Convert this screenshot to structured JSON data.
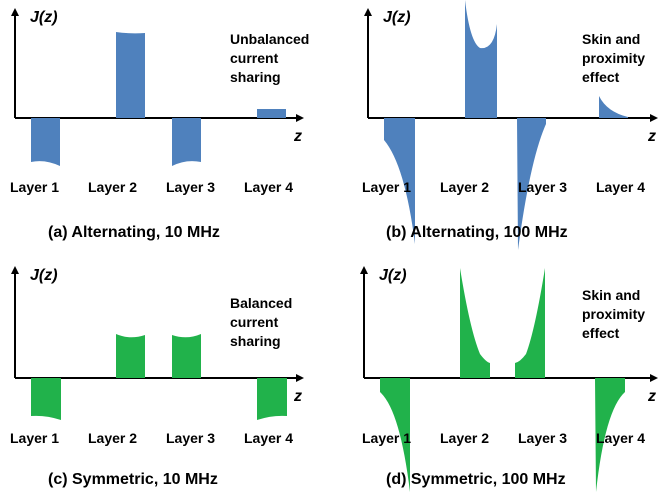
{
  "colors": {
    "blue": "#4f81bd",
    "green": "#21b24b",
    "axis": "#000000"
  },
  "axis_labels": {
    "y": "J(z)",
    "x": "z"
  },
  "panels": [
    {
      "id": "a",
      "caption": "(a) Alternating, 10 MHz",
      "note": [
        "Unbalanced",
        "current",
        "sharing"
      ],
      "layers": [
        "Layer 1",
        "Layer 2",
        "Layer 3",
        "Layer 4"
      ],
      "color": "blue"
    },
    {
      "id": "b",
      "caption": "(b) Alternating, 100 MHz",
      "note": [
        "Skin and",
        "proximity",
        "effect"
      ],
      "layers": [
        "Layer 1",
        "Layer 2",
        "Layer 3",
        "Layer 4"
      ],
      "color": "blue"
    },
    {
      "id": "c",
      "caption": "(c) Symmetric, 10 MHz",
      "note": [
        "Balanced",
        "current",
        "sharing"
      ],
      "layers": [
        "Layer 1",
        "Layer 2",
        "Layer 3",
        "Layer 4"
      ],
      "color": "green"
    },
    {
      "id": "d",
      "caption": "(d) Symmetric, 100 MHz",
      "note": [
        "Skin and",
        "proximity",
        "effect"
      ],
      "layers": [
        "Layer 1",
        "Layer 2",
        "Layer 3",
        "Layer 4"
      ],
      "color": "green"
    }
  ]
}
